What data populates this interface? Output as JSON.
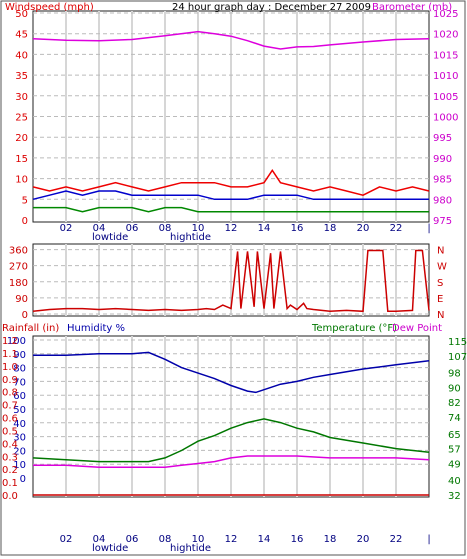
{
  "chart_data": [
    {
      "type": "line",
      "panel": "wind-barometer",
      "title": "24 hour graph day : December 27 2009",
      "left_axis_label": "Windspeed (mph)",
      "right_axis_label": "Barometer (mb)",
      "x_tick_labels": [
        "02",
        "04",
        "06",
        "08",
        "10",
        "12",
        "14",
        "16",
        "18",
        "20",
        "22",
        "|"
      ],
      "tide_labels": {
        "low": "lowtide",
        "high": "hightide"
      },
      "x_range": [
        0,
        24
      ],
      "left_ticks": [
        "0",
        "5",
        "10",
        "15",
        "20",
        "25",
        "30",
        "35",
        "40",
        "45",
        "50"
      ],
      "left_range": [
        0,
        50
      ],
      "right_ticks": [
        "975",
        "980",
        "985",
        "990",
        "995",
        "1000",
        "1005",
        "1010",
        "1015",
        "1020",
        "1025"
      ],
      "right_range": [
        975,
        1025
      ],
      "grid": true,
      "series": [
        {
          "role": "wind gust",
          "color": "#ee0000",
          "axis": "left",
          "x": [
            0,
            1,
            2,
            3,
            4,
            5,
            6,
            7,
            8,
            9,
            10,
            11,
            12,
            13,
            14,
            14.5,
            15,
            16,
            17,
            18,
            19,
            20,
            21,
            22,
            23,
            24
          ],
          "y": [
            8,
            7,
            8,
            7,
            8,
            9,
            8,
            7,
            8,
            9,
            9,
            9,
            8,
            8,
            9,
            12,
            9,
            8,
            7,
            8,
            7,
            6,
            8,
            7,
            8,
            7
          ]
        },
        {
          "role": "wind average",
          "color": "#0000cc",
          "axis": "left",
          "x": [
            0,
            1,
            2,
            3,
            4,
            5,
            6,
            7,
            8,
            9,
            10,
            11,
            12,
            13,
            14,
            15,
            16,
            17,
            18,
            19,
            20,
            21,
            22,
            23,
            24
          ],
          "y": [
            5,
            6,
            7,
            6,
            7,
            7,
            6,
            6,
            6,
            6,
            6,
            5,
            5,
            5,
            6,
            6,
            6,
            5,
            5,
            5,
            5,
            5,
            5,
            5,
            5
          ]
        },
        {
          "role": "wind speed",
          "color": "#008800",
          "axis": "left",
          "x": [
            0,
            1,
            2,
            3,
            4,
            5,
            6,
            7,
            8,
            9,
            10,
            11,
            12,
            13,
            14,
            15,
            16,
            17,
            18,
            19,
            20,
            21,
            22,
            23,
            24
          ],
          "y": [
            3,
            3,
            3,
            2,
            3,
            3,
            3,
            2,
            3,
            3,
            2,
            2,
            2,
            2,
            2,
            2,
            2,
            2,
            2,
            2,
            2,
            2,
            2,
            2,
            2
          ]
        },
        {
          "role": "barometer",
          "color": "#dd00dd",
          "axis": "right",
          "x": [
            0,
            2,
            4,
            6,
            8,
            10,
            11,
            12,
            13,
            14,
            15,
            16,
            17,
            18,
            20,
            22,
            24
          ],
          "y": [
            1018.8,
            1018.4,
            1018.3,
            1018.6,
            1019.5,
            1020.5,
            1020,
            1019.4,
            1018.3,
            1017,
            1016.3,
            1016.8,
            1016.9,
            1017.3,
            1018,
            1018.6,
            1018.8
          ]
        }
      ]
    },
    {
      "type": "line",
      "panel": "wind-direction",
      "x_range": [
        0,
        24
      ],
      "left_ticks": [
        "0",
        "90",
        "180",
        "270",
        "360"
      ],
      "left_range": [
        0,
        380
      ],
      "right_ticks": [
        "N",
        "E",
        "S",
        "W",
        "N"
      ],
      "grid": true,
      "series": [
        {
          "role": "wind direction",
          "color": "#cc0000",
          "x": [
            0,
            1,
            2,
            3,
            4,
            5,
            6,
            7,
            8,
            9,
            10,
            10.5,
            11,
            11.5,
            12,
            12.4,
            12.6,
            13,
            13.4,
            13.6,
            14,
            14.4,
            14.6,
            15,
            15.4,
            15.6,
            16,
            16.4,
            16.6,
            17,
            17.5,
            18,
            19,
            20,
            20.3,
            21.2,
            21.5,
            22,
            23,
            23.2,
            23.6,
            24
          ],
          "y": [
            15,
            25,
            30,
            30,
            25,
            30,
            25,
            20,
            25,
            20,
            25,
            30,
            25,
            50,
            30,
            350,
            30,
            350,
            40,
            350,
            30,
            340,
            30,
            350,
            30,
            50,
            25,
            60,
            30,
            25,
            20,
            15,
            20,
            15,
            355,
            355,
            15,
            15,
            20,
            355,
            355,
            20
          ]
        }
      ]
    },
    {
      "type": "line",
      "panel": "temperature-humidity",
      "left_axis_label": "Rainfall (in)",
      "humidity_label": "Humidity %",
      "right_axis_label": "Temperature (°F)",
      "right_axis_label_2": "Dew Point",
      "x_tick_labels": [
        "02",
        "04",
        "06",
        "08",
        "10",
        "12",
        "14",
        "16",
        "18",
        "20",
        "22",
        "|"
      ],
      "tide_labels": {
        "low": "lowtide",
        "high": "hightide"
      },
      "x_range": [
        0,
        24
      ],
      "humidity_ticks": [
        "0",
        "10",
        "20",
        "30",
        "40",
        "50",
        "60",
        "70",
        "80",
        "90",
        "100"
      ],
      "rain_ticks": [
        "0.0",
        "0.1",
        "0.2",
        "0.3",
        "0.4",
        "0.5",
        "0.6",
        "0.7",
        "0.8",
        "0.9",
        "1.0",
        "1.1",
        "1.2"
      ],
      "left_range": [
        0,
        100
      ],
      "right_ticks": [
        "32",
        "40",
        "49",
        "57",
        "65",
        "74",
        "82",
        "90",
        "98",
        "107",
        "115"
      ],
      "right_range": [
        32,
        115
      ],
      "grid": true,
      "series": [
        {
          "role": "humidity",
          "color": "#0000aa",
          "x": [
            0,
            2,
            4,
            6,
            7,
            8,
            9,
            10,
            11,
            12,
            13,
            13.5,
            14,
            15,
            16,
            17,
            18,
            20,
            22,
            24
          ],
          "y": [
            89,
            89,
            90,
            90,
            91,
            86,
            80,
            76,
            72,
            67,
            63,
            62,
            64,
            68,
            70,
            73,
            75,
            79,
            82,
            85
          ]
        },
        {
          "role": "temperature",
          "color": "#007700",
          "x": [
            0,
            2,
            4,
            6,
            7,
            8,
            9,
            10,
            11,
            12,
            13,
            14,
            15,
            16,
            17,
            18,
            20,
            22,
            24
          ],
          "y": [
            52,
            51,
            50,
            50,
            50,
            52,
            56,
            61,
            64,
            68,
            71,
            73,
            71,
            68,
            66,
            63,
            60,
            57,
            55
          ]
        },
        {
          "role": "dew point",
          "color": "#dd00dd",
          "x": [
            0,
            2,
            4,
            6,
            7,
            8,
            9,
            10,
            11,
            12,
            13,
            14,
            15,
            16,
            18,
            20,
            22,
            24
          ],
          "y": [
            48,
            48,
            47,
            47,
            47,
            47,
            48,
            49,
            50,
            52,
            53,
            53,
            53,
            53,
            52,
            52,
            52,
            51
          ]
        },
        {
          "role": "rainfall",
          "color": "#cc0000",
          "x": [
            0,
            24
          ],
          "y": [
            0,
            0
          ]
        }
      ]
    }
  ]
}
